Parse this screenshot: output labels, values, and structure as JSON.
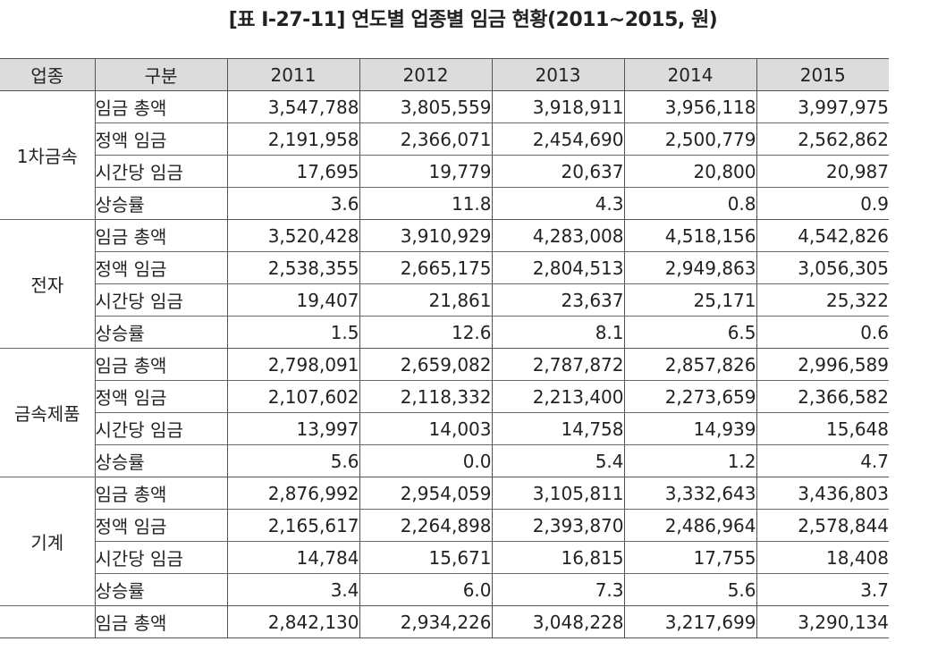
{
  "title": "[표 Ⅰ-27-11] 연도별 업종별 임금 현황(2011~2015, 원)",
  "headers": [
    "업종",
    "구분",
    "2011",
    "2012",
    "2013",
    "2014",
    "2015"
  ],
  "groups": [
    {
      "name": "1차금속",
      "rows": [
        {
          "label": "임금 총액",
          "values": [
            "3,547,788",
            "3,805,559",
            "3,918,911",
            "3,956,118",
            "3,997,975"
          ]
        },
        {
          "label": "정액 임금",
          "values": [
            "2,191,958",
            "2,366,071",
            "2,454,690",
            "2,500,779",
            "2,562,862"
          ]
        },
        {
          "label": "시간당 임금",
          "values": [
            "17,695",
            "19,779",
            "20,637",
            "20,800",
            "20,987"
          ]
        },
        {
          "label": "상승률",
          "values": [
            "3.6",
            "11.8",
            "4.3",
            "0.8",
            "0.9"
          ]
        }
      ]
    },
    {
      "name": "전자",
      "rows": [
        {
          "label": "임금 총액",
          "values": [
            "3,520,428",
            "3,910,929",
            "4,283,008",
            "4,518,156",
            "4,542,826"
          ]
        },
        {
          "label": "정액 임금",
          "values": [
            "2,538,355",
            "2,665,175",
            "2,804,513",
            "2,949,863",
            "3,056,305"
          ]
        },
        {
          "label": "시간당 임금",
          "values": [
            "19,407",
            "21,861",
            "23,637",
            "25,171",
            "25,322"
          ]
        },
        {
          "label": "상승률",
          "values": [
            "1.5",
            "12.6",
            "8.1",
            "6.5",
            "0.6"
          ]
        }
      ]
    },
    {
      "name": "금속제품",
      "rows": [
        {
          "label": "임금 총액",
          "values": [
            "2,798,091",
            "2,659,082",
            "2,787,872",
            "2,857,826",
            "2,996,589"
          ]
        },
        {
          "label": "정액 임금",
          "values": [
            "2,107,602",
            "2,118,332",
            "2,213,400",
            "2,273,659",
            "2,366,582"
          ]
        },
        {
          "label": "시간당 임금",
          "values": [
            "13,997",
            "14,003",
            "14,758",
            "14,939",
            "15,648"
          ]
        },
        {
          "label": "상승률",
          "values": [
            "5.6",
            "0.0",
            "5.4",
            "1.2",
            "4.7"
          ]
        }
      ]
    },
    {
      "name": "기계",
      "rows": [
        {
          "label": "임금 총액",
          "values": [
            "2,876,992",
            "2,954,059",
            "3,105,811",
            "3,332,643",
            "3,436,803"
          ]
        },
        {
          "label": "정액 임금",
          "values": [
            "2,165,617",
            "2,264,898",
            "2,393,870",
            "2,486,964",
            "2,578,844"
          ]
        },
        {
          "label": "시간당 임금",
          "values": [
            "14,784",
            "15,671",
            "16,815",
            "17,755",
            "18,408"
          ]
        },
        {
          "label": "상승률",
          "values": [
            "3.4",
            "6.0",
            "7.3",
            "5.6",
            "3.7"
          ]
        }
      ]
    },
    {
      "name": "",
      "rows": [
        {
          "label": "임금 총액",
          "values": [
            "2,842,130",
            "2,934,226",
            "3,048,228",
            "3,217,699",
            "3,290,134"
          ]
        }
      ]
    }
  ]
}
